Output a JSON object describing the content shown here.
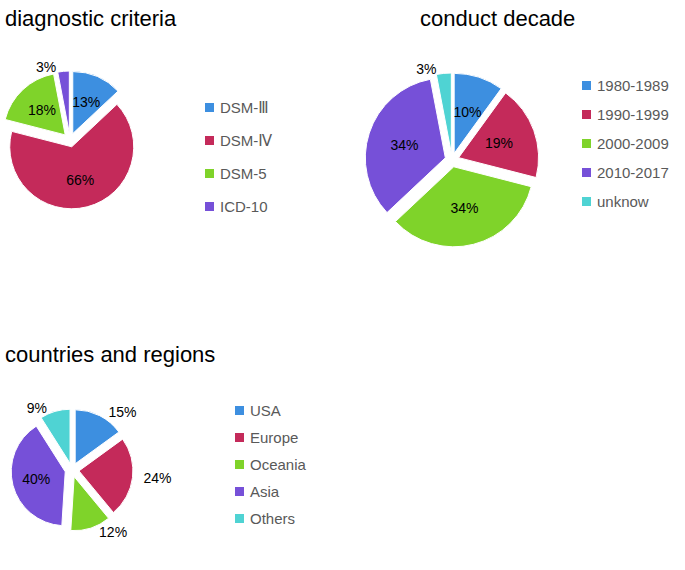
{
  "chart_data": [
    {
      "type": "pie",
      "title": "diagnostic criteria",
      "categories": [
        "DSM-Ⅲ",
        "DSM-Ⅳ",
        "DSM-5",
        "ICD-10"
      ],
      "values": [
        13,
        66,
        18,
        3
      ],
      "value_labels": [
        "13%",
        "66%",
        "18%",
        "3%"
      ],
      "colors": [
        "#3d8fe0",
        "#c42a5a",
        "#7fd32a",
        "#7650d8"
      ],
      "data_labels": true,
      "legend": "right"
    },
    {
      "type": "pie",
      "title": "conduct decade",
      "categories": [
        "1980-1989",
        "1990-1999",
        "2000-2009",
        "2010-2017",
        "unknow"
      ],
      "values": [
        10,
        19,
        34,
        34,
        3
      ],
      "value_labels": [
        "10%",
        "19%",
        "34%",
        "34%",
        "3%"
      ],
      "colors": [
        "#3d8fe0",
        "#c42a5a",
        "#7fd32a",
        "#7650d8",
        "#4fd3d3"
      ],
      "data_labels": true,
      "legend": "right"
    },
    {
      "type": "pie",
      "title": "countries and regions",
      "categories": [
        "USA",
        "Europe",
        "Oceania",
        "Asia",
        "Others"
      ],
      "values": [
        15,
        24,
        12,
        40,
        9
      ],
      "value_labels": [
        "15%",
        "24%",
        "12%",
        "40%",
        "9%"
      ],
      "colors": [
        "#3d8fe0",
        "#c42a5a",
        "#7fd32a",
        "#7650d8",
        "#4fd3d3"
      ],
      "data_labels": true,
      "legend": "right"
    }
  ]
}
